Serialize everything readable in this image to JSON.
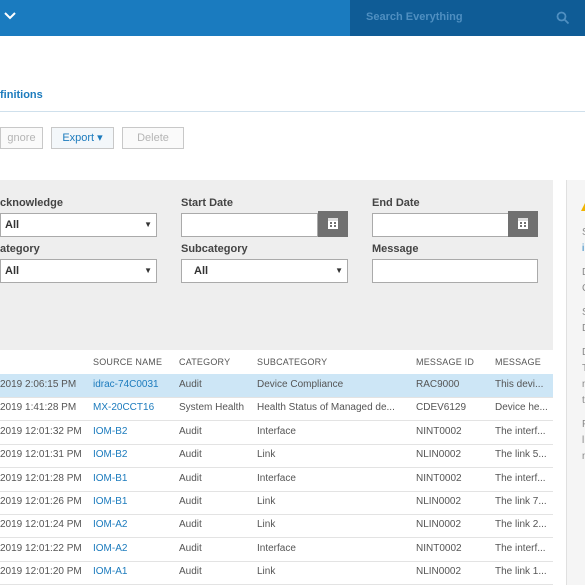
{
  "header": {
    "search_placeholder": "Search Everything"
  },
  "breadcrumb": "finitions",
  "toolbar": {
    "ignore_label": "gnore",
    "export_label": "Export ▾",
    "delete_label": "Delete"
  },
  "filters": {
    "acknowledge": {
      "label": "cknowledge",
      "value": "All"
    },
    "start_date": {
      "label": "Start Date"
    },
    "end_date": {
      "label": "End Date"
    },
    "category": {
      "label": "ategory",
      "value": "All"
    },
    "subcategory": {
      "label": "Subcategory",
      "value": "All"
    },
    "message": {
      "label": "Message"
    }
  },
  "table": {
    "columns": [
      "SOURCE NAME",
      "CATEGORY",
      "SUBCATEGORY",
      "MESSAGE ID",
      "MESSAGE"
    ],
    "rows": [
      {
        "time": "2019 2:06:15 PM",
        "source": "idrac-74C0031",
        "category": "Audit",
        "subcategory": "Device Compliance",
        "message_id": "RAC9000",
        "message": "This devi..."
      },
      {
        "time": "2019 1:41:28 PM",
        "source": "MX-20CCT16",
        "category": "System Health",
        "subcategory": "Health Status of Managed de...",
        "message_id": "CDEV6129",
        "message": "Device he..."
      },
      {
        "time": "2019 12:01:32 PM",
        "source": "IOM-B2",
        "category": "Audit",
        "subcategory": "Interface",
        "message_id": "NINT0002",
        "message": "The interf..."
      },
      {
        "time": "2019 12:01:31 PM",
        "source": "IOM-B2",
        "category": "Audit",
        "subcategory": "Link",
        "message_id": "NLIN0002",
        "message": "The link 5..."
      },
      {
        "time": "2019 12:01:28 PM",
        "source": "IOM-B1",
        "category": "Audit",
        "subcategory": "Interface",
        "message_id": "NINT0002",
        "message": "The interf..."
      },
      {
        "time": "2019 12:01:26 PM",
        "source": "IOM-B1",
        "category": "Audit",
        "subcategory": "Link",
        "message_id": "NLIN0002",
        "message": "The link 7..."
      },
      {
        "time": "2019 12:01:24 PM",
        "source": "IOM-A2",
        "category": "Audit",
        "subcategory": "Link",
        "message_id": "NLIN0002",
        "message": "The link 2..."
      },
      {
        "time": "2019 12:01:22 PM",
        "source": "IOM-A2",
        "category": "Audit",
        "subcategory": "Interface",
        "message_id": "NINT0002",
        "message": "The interf..."
      },
      {
        "time": "2019 12:01:20 PM",
        "source": "IOM-A1",
        "category": "Audit",
        "subcategory": "Link",
        "message_id": "NLIN0002",
        "message": "The link 1..."
      }
    ]
  },
  "side_panel": {
    "lines": [
      "S",
      "i",
      "D",
      "C",
      "S",
      "D",
      "D",
      "T",
      "n",
      "t",
      "F",
      "l",
      "n"
    ]
  },
  "colors": {
    "header_bg": "#1a7bbf",
    "search_bg": "#0f5c96",
    "link": "#1c7bbd",
    "selected_row": "#cde6f6"
  },
  "icons": {
    "menu_chevron": "chevron-down-icon",
    "search": "search-icon",
    "calendar": "calendar-icon",
    "warning": "warning-icon"
  }
}
